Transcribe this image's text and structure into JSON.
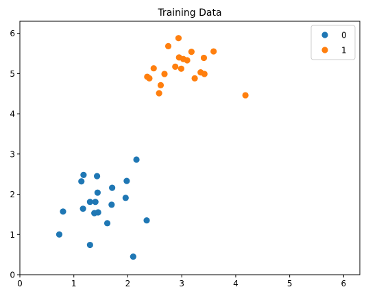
{
  "chart_data": {
    "type": "scatter",
    "title": "Training Data",
    "xlabel": "",
    "ylabel": "",
    "xlim": [
      0,
      6.3
    ],
    "ylim": [
      0,
      6.3
    ],
    "x_ticks": [
      "0",
      "1",
      "2",
      "3",
      "4",
      "5",
      "6"
    ],
    "y_ticks": [
      "0",
      "1",
      "2",
      "3",
      "4",
      "5",
      "6"
    ],
    "grid": false,
    "legend_position": "top-right",
    "series": [
      {
        "name": "0",
        "color": "#1f77b4",
        "points": [
          [
            0.73,
            1.0
          ],
          [
            0.8,
            1.57
          ],
          [
            1.14,
            2.32
          ],
          [
            1.18,
            2.48
          ],
          [
            1.17,
            1.64
          ],
          [
            1.3,
            0.74
          ],
          [
            1.3,
            1.81
          ],
          [
            1.38,
            1.53
          ],
          [
            1.4,
            1.81
          ],
          [
            1.43,
            2.45
          ],
          [
            1.44,
            2.04
          ],
          [
            1.45,
            1.55
          ],
          [
            1.62,
            1.28
          ],
          [
            1.7,
            1.74
          ],
          [
            1.71,
            2.16
          ],
          [
            1.96,
            1.91
          ],
          [
            1.98,
            2.33
          ],
          [
            2.1,
            0.45
          ],
          [
            2.16,
            2.86
          ],
          [
            2.35,
            1.35
          ]
        ]
      },
      {
        "name": "1",
        "color": "#ff7f0e",
        "points": [
          [
            2.36,
            4.92
          ],
          [
            2.4,
            4.88
          ],
          [
            2.48,
            5.13
          ],
          [
            2.58,
            4.51
          ],
          [
            2.61,
            4.71
          ],
          [
            2.68,
            4.99
          ],
          [
            2.75,
            5.68
          ],
          [
            2.88,
            5.17
          ],
          [
            2.94,
            5.88
          ],
          [
            2.95,
            5.4
          ],
          [
            2.99,
            5.12
          ],
          [
            3.03,
            5.36
          ],
          [
            3.1,
            5.33
          ],
          [
            3.18,
            5.54
          ],
          [
            3.24,
            4.88
          ],
          [
            3.35,
            5.03
          ],
          [
            3.41,
            5.39
          ],
          [
            3.42,
            4.99
          ],
          [
            3.59,
            5.55
          ],
          [
            4.18,
            4.46
          ]
        ]
      }
    ]
  }
}
